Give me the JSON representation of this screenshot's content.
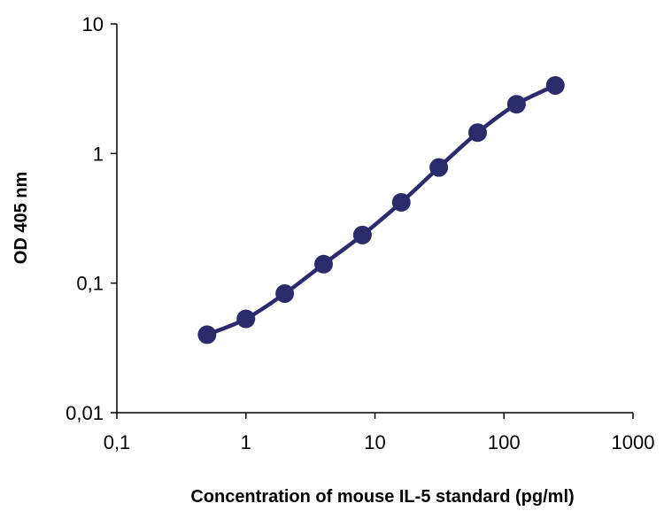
{
  "chart_data": {
    "type": "line",
    "title": "",
    "xlabel": "Concentration of mouse IL-5 standard (pg/ml)",
    "ylabel": "OD 405 nm",
    "x_scale": "log",
    "y_scale": "log",
    "xlim": [
      0.1,
      1000
    ],
    "ylim": [
      0.01,
      10
    ],
    "x_ticks": [
      {
        "value": 0.1,
        "label": "0,1"
      },
      {
        "value": 1,
        "label": "1"
      },
      {
        "value": 10,
        "label": "10"
      },
      {
        "value": 100,
        "label": "100"
      },
      {
        "value": 1000,
        "label": "1000"
      }
    ],
    "y_ticks": [
      {
        "value": 0.01,
        "label": "0,01"
      },
      {
        "value": 0.1,
        "label": "0,1"
      },
      {
        "value": 1,
        "label": "1"
      },
      {
        "value": 10,
        "label": "10"
      }
    ],
    "grid": false,
    "legend": "none",
    "series": [
      {
        "color": "#2b2a6b",
        "marker": "circle",
        "smooth": true,
        "x": [
          0.5,
          1,
          2,
          4,
          8,
          16,
          31.25,
          62.5,
          125,
          250
        ],
        "y": [
          0.04,
          0.053,
          0.083,
          0.14,
          0.235,
          0.42,
          0.78,
          1.45,
          2.4,
          3.35
        ]
      }
    ]
  }
}
